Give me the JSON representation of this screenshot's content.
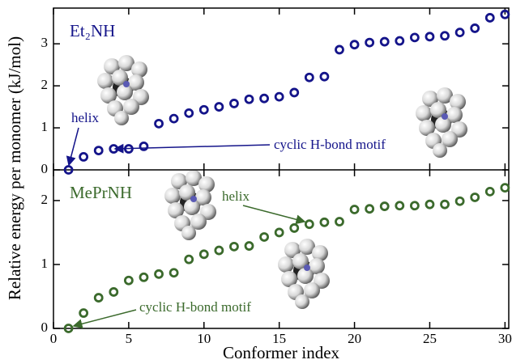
{
  "chart_data": [
    {
      "type": "scatter",
      "label": "Et₂NH",
      "ylabel": "Relative energy per monomer (kJ/mol)",
      "annotations": [
        "helix",
        "cyclic H-bond motif"
      ],
      "x": [
        1,
        2,
        3,
        4,
        5,
        6,
        7,
        8,
        9,
        10,
        11,
        12,
        13,
        14,
        15,
        16,
        17,
        18,
        19,
        20,
        21,
        22,
        23,
        24,
        25,
        26,
        27,
        28,
        29,
        30
      ],
      "series": [
        {
          "name": "Et₂NH",
          "color": "#14148a",
          "values": [
            0,
            0.31,
            0.46,
            0.5,
            0.5,
            0.56,
            1.1,
            1.22,
            1.35,
            1.43,
            1.5,
            1.58,
            1.68,
            1.7,
            1.74,
            1.84,
            2.2,
            2.22,
            2.86,
            2.98,
            3.03,
            3.05,
            3.07,
            3.15,
            3.17,
            3.19,
            3.27,
            3.37,
            3.62,
            3.7
          ]
        }
      ],
      "xlim": [
        0,
        30.25
      ],
      "ylim": [
        0,
        3.85
      ],
      "yticks": [
        0,
        1,
        2,
        3
      ]
    },
    {
      "type": "scatter",
      "label": "MePrNH",
      "xlabel": "Conformer index",
      "annotations": [
        "helix",
        "cyclic H-bond motif"
      ],
      "x": [
        1,
        2,
        3,
        4,
        5,
        6,
        7,
        8,
        9,
        10,
        11,
        12,
        13,
        14,
        15,
        16,
        17,
        18,
        19,
        20,
        21,
        22,
        23,
        24,
        25,
        26,
        27,
        28,
        29,
        30
      ],
      "series": [
        {
          "name": "MePrNH",
          "color": "#3b6a2c",
          "values": [
            0,
            0.24,
            0.48,
            0.57,
            0.75,
            0.8,
            0.85,
            0.87,
            1.08,
            1.16,
            1.22,
            1.28,
            1.29,
            1.43,
            1.5,
            1.57,
            1.63,
            1.66,
            1.67,
            1.86,
            1.87,
            1.91,
            1.92,
            1.92,
            1.94,
            1.94,
            1.99,
            2.05,
            2.14,
            2.2
          ]
        }
      ],
      "xlim": [
        0,
        30.25
      ],
      "ylim": [
        0,
        2.48
      ],
      "yticks": [
        0,
        1,
        2
      ],
      "xticks": [
        0,
        5,
        10,
        15,
        20,
        25,
        30
      ]
    }
  ]
}
